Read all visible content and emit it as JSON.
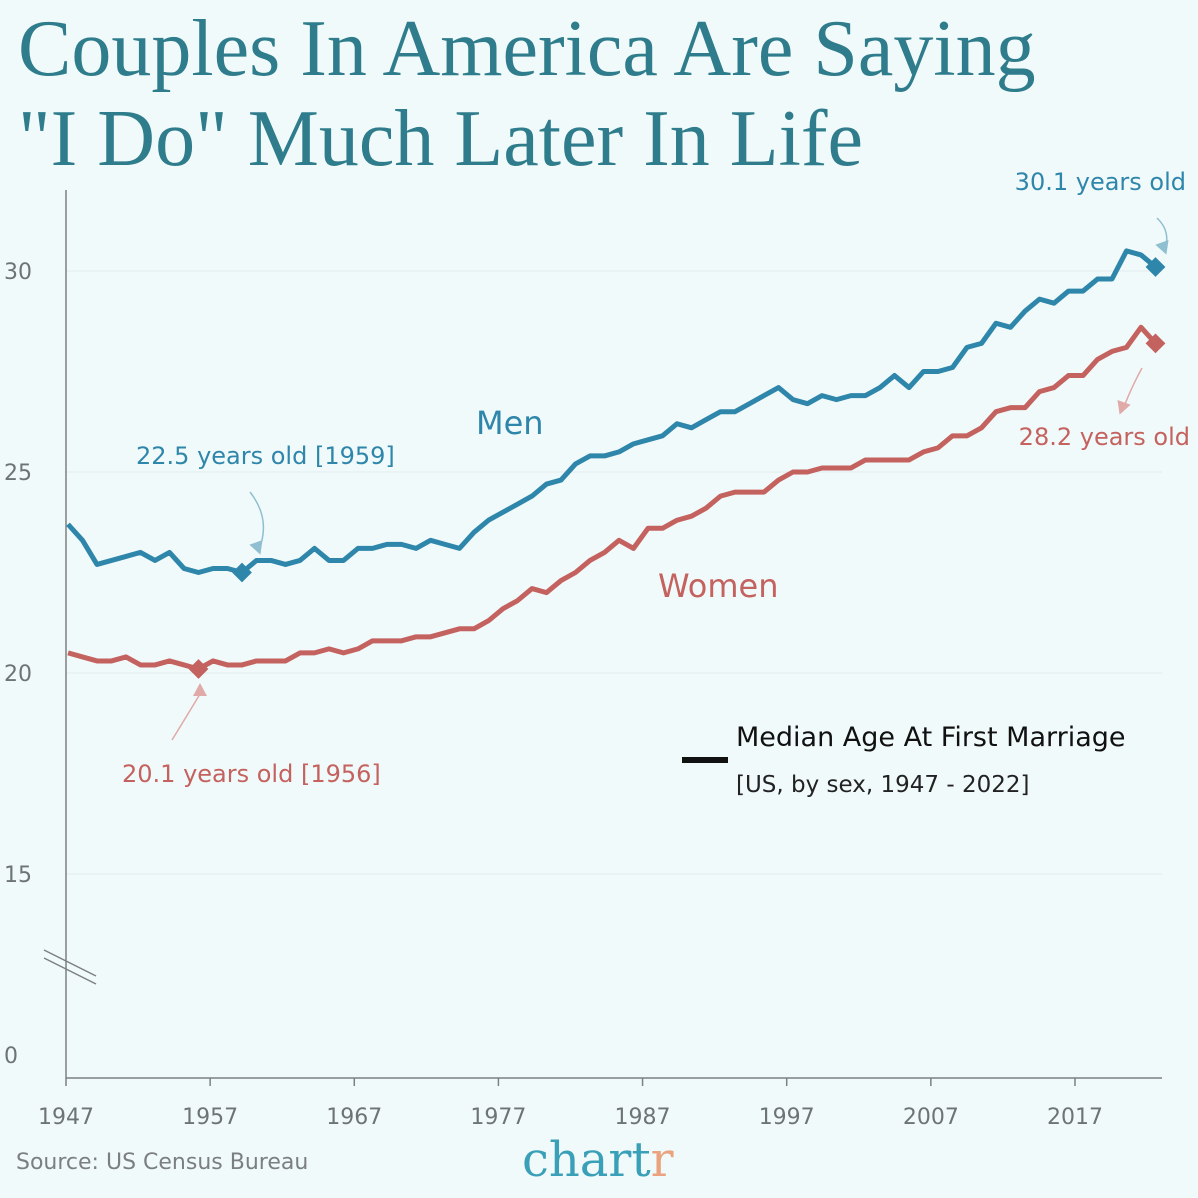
{
  "title_line1": "Couples In America Are Saying",
  "title_line2": "\"I Do\" Much Later In Life",
  "source": "Source: US Census Bureau",
  "logo": {
    "main": "chart",
    "accent": "r"
  },
  "colors": {
    "men": "#2f86ab",
    "women": "#c4625f",
    "title": "#2f7d8c",
    "background": "#f1fafa"
  },
  "chart_data": {
    "type": "line",
    "title": "Couples In America Are Saying \"I Do\" Much Later In Life",
    "legend_title": "Median Age At First Marriage",
    "legend_subtitle": "[US, by sex, 1947 - 2022]",
    "xlim": [
      1947,
      2022
    ],
    "ylim": [
      0,
      32
    ],
    "y_axis_break": true,
    "x_ticks": [
      1947,
      1957,
      1967,
      1977,
      1987,
      1997,
      2007,
      2017
    ],
    "y_ticks": [
      0,
      15,
      20,
      25,
      30
    ],
    "grid": "horizontal",
    "x_start": 1947,
    "series": [
      {
        "name": "Men",
        "color": "#2f86ab",
        "values": [
          23.7,
          23.3,
          22.7,
          22.8,
          22.9,
          23.0,
          22.8,
          23.0,
          22.6,
          22.5,
          22.6,
          22.6,
          22.5,
          22.8,
          22.8,
          22.7,
          22.8,
          23.1,
          22.8,
          22.8,
          23.1,
          23.1,
          23.2,
          23.2,
          23.1,
          23.3,
          23.2,
          23.1,
          23.5,
          23.8,
          24.0,
          24.2,
          24.4,
          24.7,
          24.8,
          25.2,
          25.4,
          25.4,
          25.5,
          25.7,
          25.8,
          25.9,
          26.2,
          26.1,
          26.3,
          26.5,
          26.5,
          26.7,
          26.9,
          27.1,
          26.8,
          26.7,
          26.9,
          26.8,
          26.9,
          26.9,
          27.1,
          27.4,
          27.1,
          27.5,
          27.5,
          27.6,
          28.1,
          28.2,
          28.7,
          28.6,
          29.0,
          29.3,
          29.2,
          29.5,
          29.5,
          29.8,
          29.8,
          30.5,
          30.4,
          30.1
        ]
      },
      {
        "name": "Women",
        "color": "#c4625f",
        "values": [
          20.5,
          20.4,
          20.3,
          20.3,
          20.4,
          20.2,
          20.2,
          20.3,
          20.2,
          20.1,
          20.3,
          20.2,
          20.2,
          20.3,
          20.3,
          20.3,
          20.5,
          20.5,
          20.6,
          20.5,
          20.6,
          20.8,
          20.8,
          20.8,
          20.9,
          20.9,
          21.0,
          21.1,
          21.1,
          21.3,
          21.6,
          21.8,
          22.1,
          22.0,
          22.3,
          22.5,
          22.8,
          23.0,
          23.3,
          23.1,
          23.6,
          23.6,
          23.8,
          23.9,
          24.1,
          24.4,
          24.5,
          24.5,
          24.5,
          24.8,
          25.0,
          25.0,
          25.1,
          25.1,
          25.1,
          25.3,
          25.3,
          25.3,
          25.3,
          25.5,
          25.6,
          25.9,
          25.9,
          26.1,
          26.5,
          26.6,
          26.6,
          27.0,
          27.1,
          27.4,
          27.4,
          27.8,
          28.0,
          28.1,
          28.6,
          28.2
        ]
      }
    ],
    "annotations": [
      {
        "series": "Men",
        "year": 1959,
        "value": 22.5,
        "text": "22.5 years old [1959]"
      },
      {
        "series": "Women",
        "year": 1956,
        "value": 20.1,
        "text": "20.1 years old [1956]"
      },
      {
        "series": "Men",
        "year": 2022,
        "value": 30.1,
        "text": "30.1 years old"
      },
      {
        "series": "Women",
        "year": 2022,
        "value": 28.2,
        "text": "28.2 years old"
      }
    ]
  }
}
